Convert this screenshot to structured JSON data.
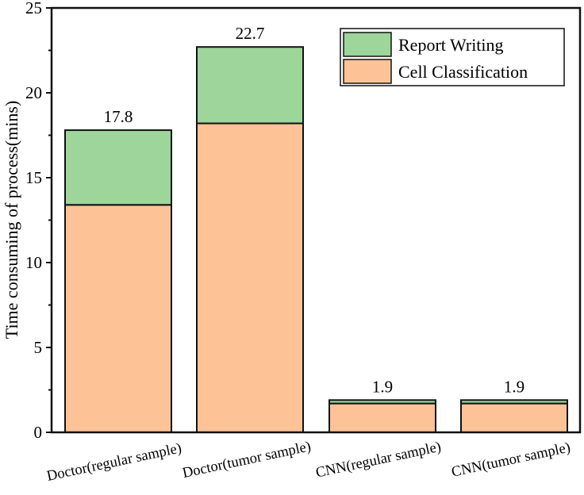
{
  "chart_data": {
    "type": "bar",
    "stacked": true,
    "title": "",
    "xlabel": "",
    "ylabel": "Time consuming of process(mins)",
    "ylim": [
      0,
      25
    ],
    "yticks": [
      0,
      5,
      10,
      15,
      20,
      25
    ],
    "grid": false,
    "legend_position": "upper right",
    "categories": [
      "Doctor(regular sample)",
      "Doctor(tumor sample)",
      "CNN(regular sample)",
      "CNN(tumor sample)"
    ],
    "series": [
      {
        "name": "Cell Classification",
        "color": "#fdc397",
        "values": [
          13.4,
          18.2,
          1.7,
          1.7
        ]
      },
      {
        "name": "Report Writing",
        "color": "#9dd59a",
        "values": [
          4.4,
          4.5,
          0.2,
          0.2
        ]
      }
    ],
    "totals": [
      17.8,
      22.7,
      1.9,
      1.9
    ],
    "total_labels": [
      "17.8",
      "22.7",
      "1.9",
      "1.9"
    ]
  },
  "legend": {
    "items": [
      {
        "label": "Report Writing",
        "color": "#9dd59a"
      },
      {
        "label": "Cell Classification",
        "color": "#fdc397"
      }
    ]
  },
  "axis": {
    "y_title": "Time consuming of process(mins)",
    "y_tick_labels": [
      "0",
      "5",
      "10",
      "15",
      "20",
      "25"
    ]
  }
}
